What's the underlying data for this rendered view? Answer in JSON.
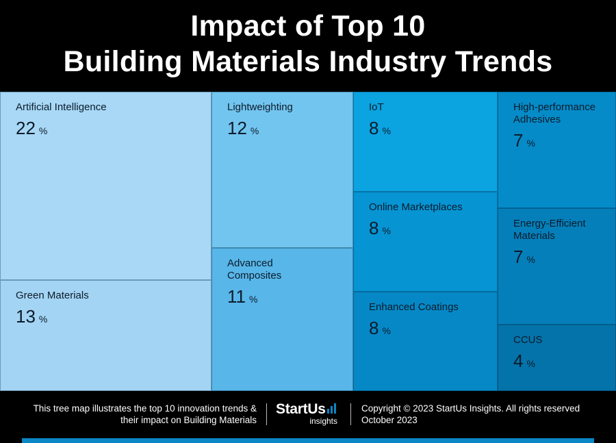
{
  "title_line1": "Impact of Top 10",
  "title_line2": "Building Materials Industry Trends",
  "chart_data": {
    "type": "treemap",
    "title": "Impact of Top 10 Building Materials Industry Trends",
    "unit": "%",
    "items": [
      {
        "label": "Artificial Intelligence",
        "value": 22,
        "color": "#a8d8f6"
      },
      {
        "label": "Green Materials",
        "value": 13,
        "color": "#a3d4f3"
      },
      {
        "label": "Lightweighting",
        "value": 12,
        "color": "#72c5ef"
      },
      {
        "label": "Advanced Composites",
        "value": 11,
        "color": "#58b6e8"
      },
      {
        "label": "IoT",
        "value": 8,
        "color": "#0ba3e0"
      },
      {
        "label": "Online Marketplaces",
        "value": 8,
        "color": "#0694d3"
      },
      {
        "label": "Enhanced Coatings",
        "value": 8,
        "color": "#0688c6"
      },
      {
        "label": "High-performance Adhesives",
        "value": 7,
        "color": "#058bc8"
      },
      {
        "label": "Energy-Efficient Materials",
        "value": 7,
        "color": "#057fba"
      },
      {
        "label": "CCUS",
        "value": 4,
        "color": "#0473a9"
      }
    ]
  },
  "footer": {
    "description_line1": "This tree map illustrates the top 10 innovation trends &",
    "description_line2": "their impact on Building Materials",
    "logo_main": "StartUs",
    "logo_sub": "insights",
    "copyright": "Copyright © 2023 StartUs Insights. All rights reserved",
    "date": "October 2023"
  },
  "colors": {
    "accent": "#0a86c4",
    "background": "#000000"
  }
}
